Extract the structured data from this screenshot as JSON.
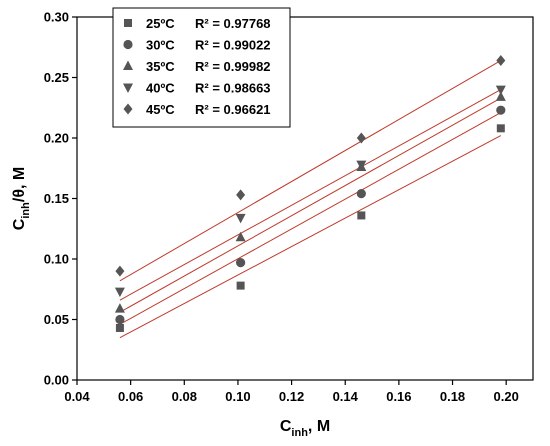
{
  "chart_data": {
    "type": "scatter",
    "xlabel": {
      "main": "C",
      "sub": "inh",
      "tail": ", M"
    },
    "ylabel": {
      "main": "C",
      "sub": "inh",
      "tail": "/θ, M"
    },
    "xlim": [
      0.04,
      0.21
    ],
    "ylim": [
      0.0,
      0.3
    ],
    "xticks": [
      "0.04",
      "0.06",
      "0.08",
      "0.10",
      "0.12",
      "0.14",
      "0.16",
      "0.18",
      "0.20"
    ],
    "yticks": [
      "0.00",
      "0.05",
      "0.10",
      "0.15",
      "0.20",
      "0.25",
      "0.30"
    ],
    "grid": false,
    "legend_position": "top-left",
    "marker_color": "#555555",
    "fit_line_color": "#c0392b",
    "series": [
      {
        "name": "25ºC",
        "r2_label": "R² = 0.97768",
        "marker": "square",
        "x": [
          0.056,
          0.101,
          0.146,
          0.198
        ],
        "y": [
          0.043,
          0.078,
          0.136,
          0.208
        ],
        "fit": {
          "x": [
            0.056,
            0.198
          ],
          "y": [
            0.035,
            0.202
          ]
        }
      },
      {
        "name": "30ºC",
        "r2_label": "R² = 0.99022",
        "marker": "circle",
        "x": [
          0.056,
          0.101,
          0.146,
          0.198
        ],
        "y": [
          0.05,
          0.097,
          0.154,
          0.223
        ],
        "fit": {
          "x": [
            0.056,
            0.198
          ],
          "y": [
            0.046,
            0.221
          ]
        }
      },
      {
        "name": "35ºC",
        "r2_label": "R² = 0.99982",
        "marker": "triangle-up",
        "x": [
          0.056,
          0.101,
          0.146,
          0.198
        ],
        "y": [
          0.059,
          0.118,
          0.176,
          0.234
        ],
        "fit": {
          "x": [
            0.056,
            0.198
          ],
          "y": [
            0.056,
            0.233
          ]
        }
      },
      {
        "name": "40ºC",
        "r2_label": "R² = 0.98663",
        "marker": "triangle-down",
        "x": [
          0.056,
          0.101,
          0.146,
          0.198
        ],
        "y": [
          0.073,
          0.134,
          0.178,
          0.24
        ],
        "fit": {
          "x": [
            0.056,
            0.198
          ],
          "y": [
            0.066,
            0.24
          ]
        }
      },
      {
        "name": "45ºC",
        "r2_label": "R² = 0.96621",
        "marker": "diamond",
        "x": [
          0.056,
          0.101,
          0.146,
          0.198
        ],
        "y": [
          0.09,
          0.153,
          0.2,
          0.264
        ],
        "fit": {
          "x": [
            0.056,
            0.198
          ],
          "y": [
            0.082,
            0.264
          ]
        }
      }
    ]
  }
}
